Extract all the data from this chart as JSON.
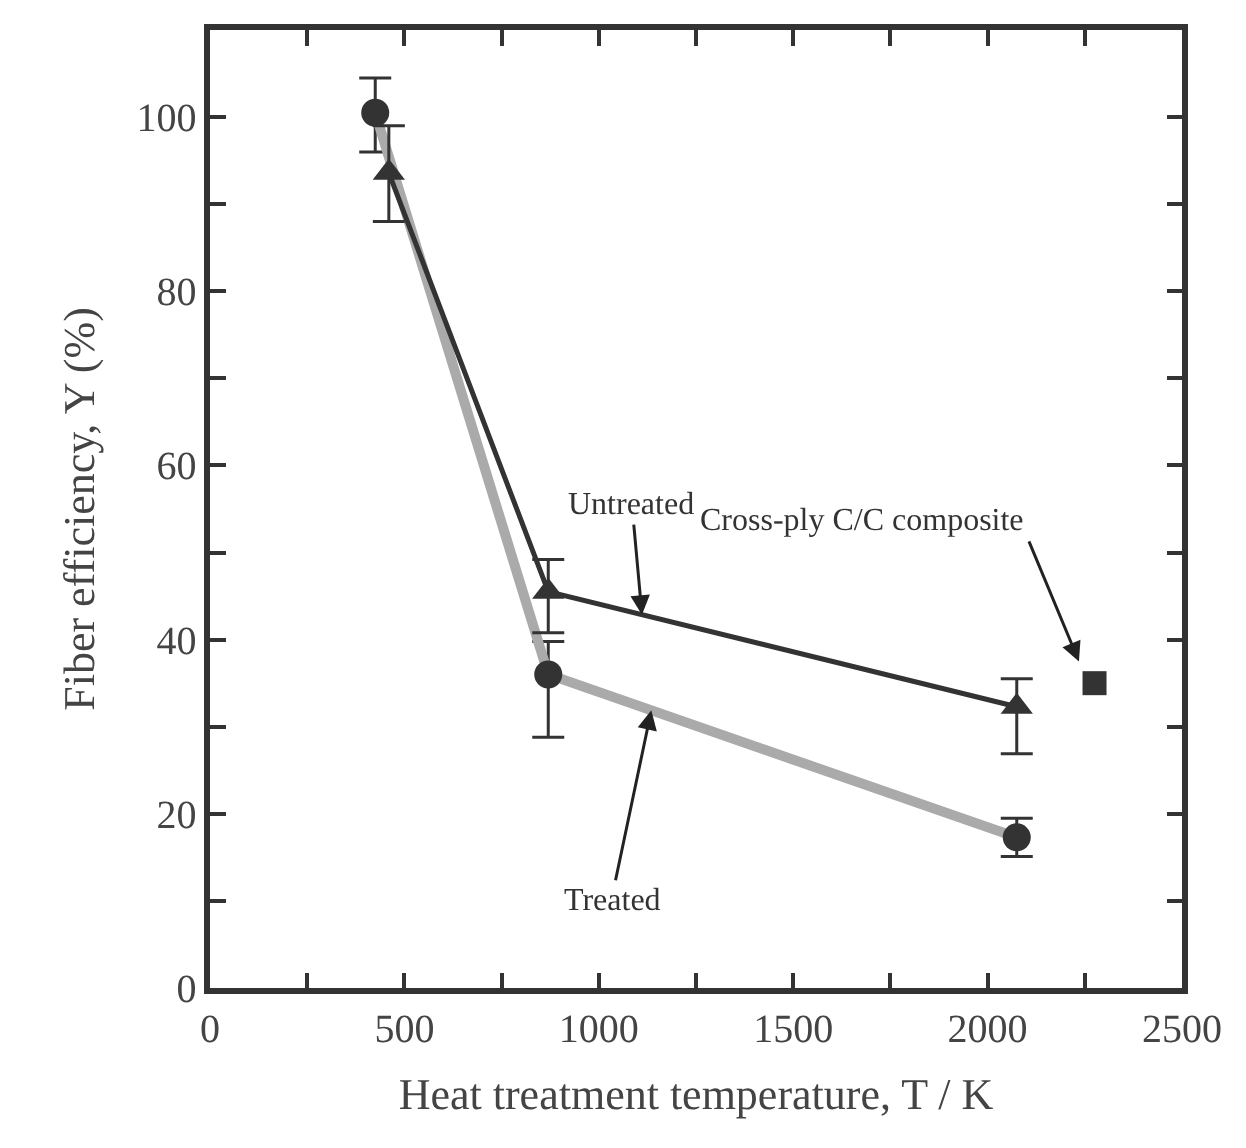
{
  "chart_data": {
    "type": "line",
    "xlabel": "Heat treatment temperature, T / K",
    "ylabel": "Fiber efficiency, Y (%)",
    "xlim": [
      0,
      2500
    ],
    "ylim": [
      0,
      110
    ],
    "xticks": [
      0,
      {
        "value": 250,
        "label": null
      },
      500,
      {
        "value": 750,
        "label": null
      },
      1000,
      {
        "value": 1250,
        "label": null
      },
      1500,
      {
        "value": 1750,
        "label": null
      },
      2000,
      {
        "value": 2250,
        "label": null
      },
      2500
    ],
    "yticks": [
      0,
      {
        "value": 10,
        "label": null
      },
      20,
      {
        "value": 30,
        "label": null
      },
      40,
      {
        "value": 50,
        "label": null
      },
      60,
      {
        "value": 70,
        "label": null
      },
      80,
      {
        "value": 90,
        "label": null
      },
      100
    ],
    "legend": false,
    "series": [
      {
        "name": "Treated",
        "color": "#aaaaaa",
        "marker": "circle",
        "x": [
          425,
          870,
          2075
        ],
        "values": [
          100.5,
          36,
          17.3
        ],
        "errors": [
          [
            96,
            104.5
          ],
          [
            28.8,
            39.8
          ],
          [
            15.1,
            19.5
          ]
        ]
      },
      {
        "name": "Untreated",
        "color": "#333333",
        "marker": "triangle",
        "x": [
          460,
          870,
          2075
        ],
        "values": [
          93.6,
          45.5,
          32.3
        ],
        "errors": [
          [
            88,
            99
          ],
          [
            40.8,
            49.2
          ],
          [
            26.9,
            35.5
          ]
        ]
      },
      {
        "type": "scatter",
        "color": "#333333",
        "marker": "square",
        "x": [
          2275
        ],
        "values": [
          35
        ]
      }
    ],
    "annotations": [
      {
        "text": "Cross-ply C/C composite",
        "x": 2235,
        "y": 37.5
      }
    ]
  }
}
